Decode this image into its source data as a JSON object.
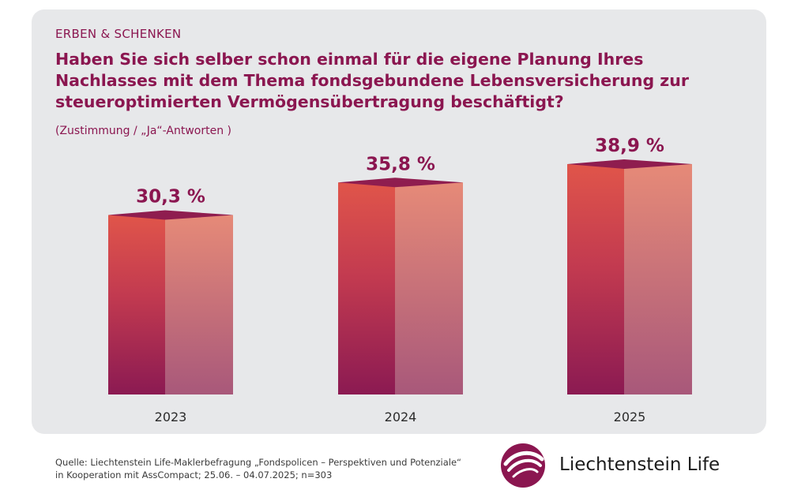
{
  "header": {
    "kicker": "ERBEN & SCHENKEN",
    "title": "Haben Sie sich selber schon einmal für die eigene Planung Ihres Nachlasses mit dem Thema fondsgebundene Lebensversicherung zur steueroptimierten Vermögensübertragung beschäftigt?",
    "subtitle": "(Zustimmung / „Ja“-Antworten )"
  },
  "chart_data": {
    "type": "bar",
    "categories": [
      "2023",
      "2024",
      "2025"
    ],
    "values": [
      30.3,
      35.8,
      38.9
    ],
    "value_labels": [
      "30,3 %",
      "35,8 %",
      "38,9 %"
    ],
    "unit": "%",
    "title": "Haben Sie sich selber schon einmal für die eigene Planung Ihres Nachlasses mit dem Thema fondsgebundene Lebensversicherung zur steueroptimierten Vermögensübertragung beschäftigt?",
    "xlabel": "",
    "ylabel": "",
    "ylim": [
      0,
      45
    ],
    "grid": false,
    "legend": "none"
  },
  "footer": {
    "source_line1": "Quelle: Liechtenstein Life-Maklerbefragung „Fondspolicen – Perspektiven und Potenziale“",
    "source_line2": "in Kooperation mit AssCompact; 25.06. – 04.07.2025; n=303",
    "brand_name": "Liechtenstein Life"
  },
  "colors": {
    "brand": "#8b1650",
    "bar_front_top": "#e0554a",
    "bar_front_bottom": "#8b1a52",
    "bar_side_top": "#e68a78",
    "bar_side_bottom": "#a8587a",
    "bar_top_face": "#8f1d4f"
  }
}
